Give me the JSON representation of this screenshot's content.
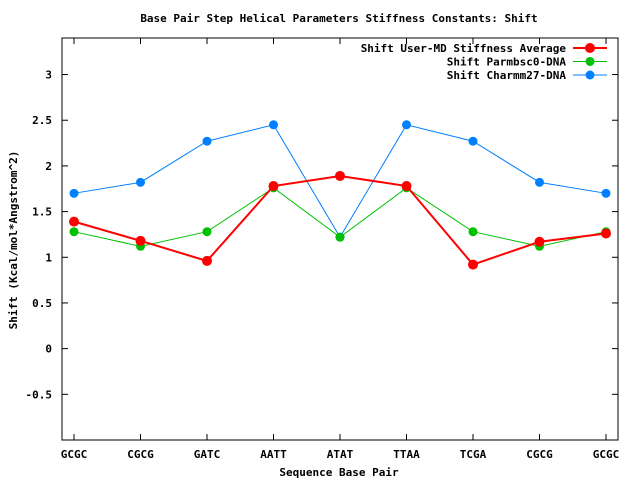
{
  "chart_data": {
    "type": "line",
    "title": "Base Pair Step Helical Parameters Stiffness Constants: Shift",
    "xlabel": "Sequence Base Pair",
    "ylabel": "Shift (Kcal/mol*Angstrom^2)",
    "categories": [
      "GCGC",
      "CGCG",
      "GATC",
      "AATT",
      "ATAT",
      "TTAA",
      "TCGA",
      "CGCG",
      "GCGC"
    ],
    "ylim": [
      -1,
      3.4
    ],
    "yticks": [
      -0.5,
      0,
      0.5,
      1,
      1.5,
      2,
      2.5,
      3
    ],
    "ytick_labels": [
      "-0.5",
      "0",
      "0.5",
      "1",
      "1.5",
      "2",
      "2.5",
      "3"
    ],
    "grid": false,
    "legend_position": "top-right",
    "series": [
      {
        "name": "Shift User-MD Stiffness Average",
        "color": "#ff0000",
        "values": [
          1.39,
          1.18,
          0.96,
          1.78,
          1.89,
          1.78,
          0.92,
          1.17,
          1.26
        ]
      },
      {
        "name": "Shift Parmbsc0-DNA",
        "color": "#00c000",
        "values": [
          1.28,
          1.12,
          1.28,
          1.76,
          1.22,
          1.76,
          1.28,
          1.12,
          1.28
        ]
      },
      {
        "name": "Shift Charmm27-DNA",
        "color": "#0080ff",
        "values": [
          1.7,
          1.82,
          2.27,
          2.45,
          1.22,
          2.45,
          2.27,
          1.82,
          1.7
        ]
      }
    ]
  }
}
